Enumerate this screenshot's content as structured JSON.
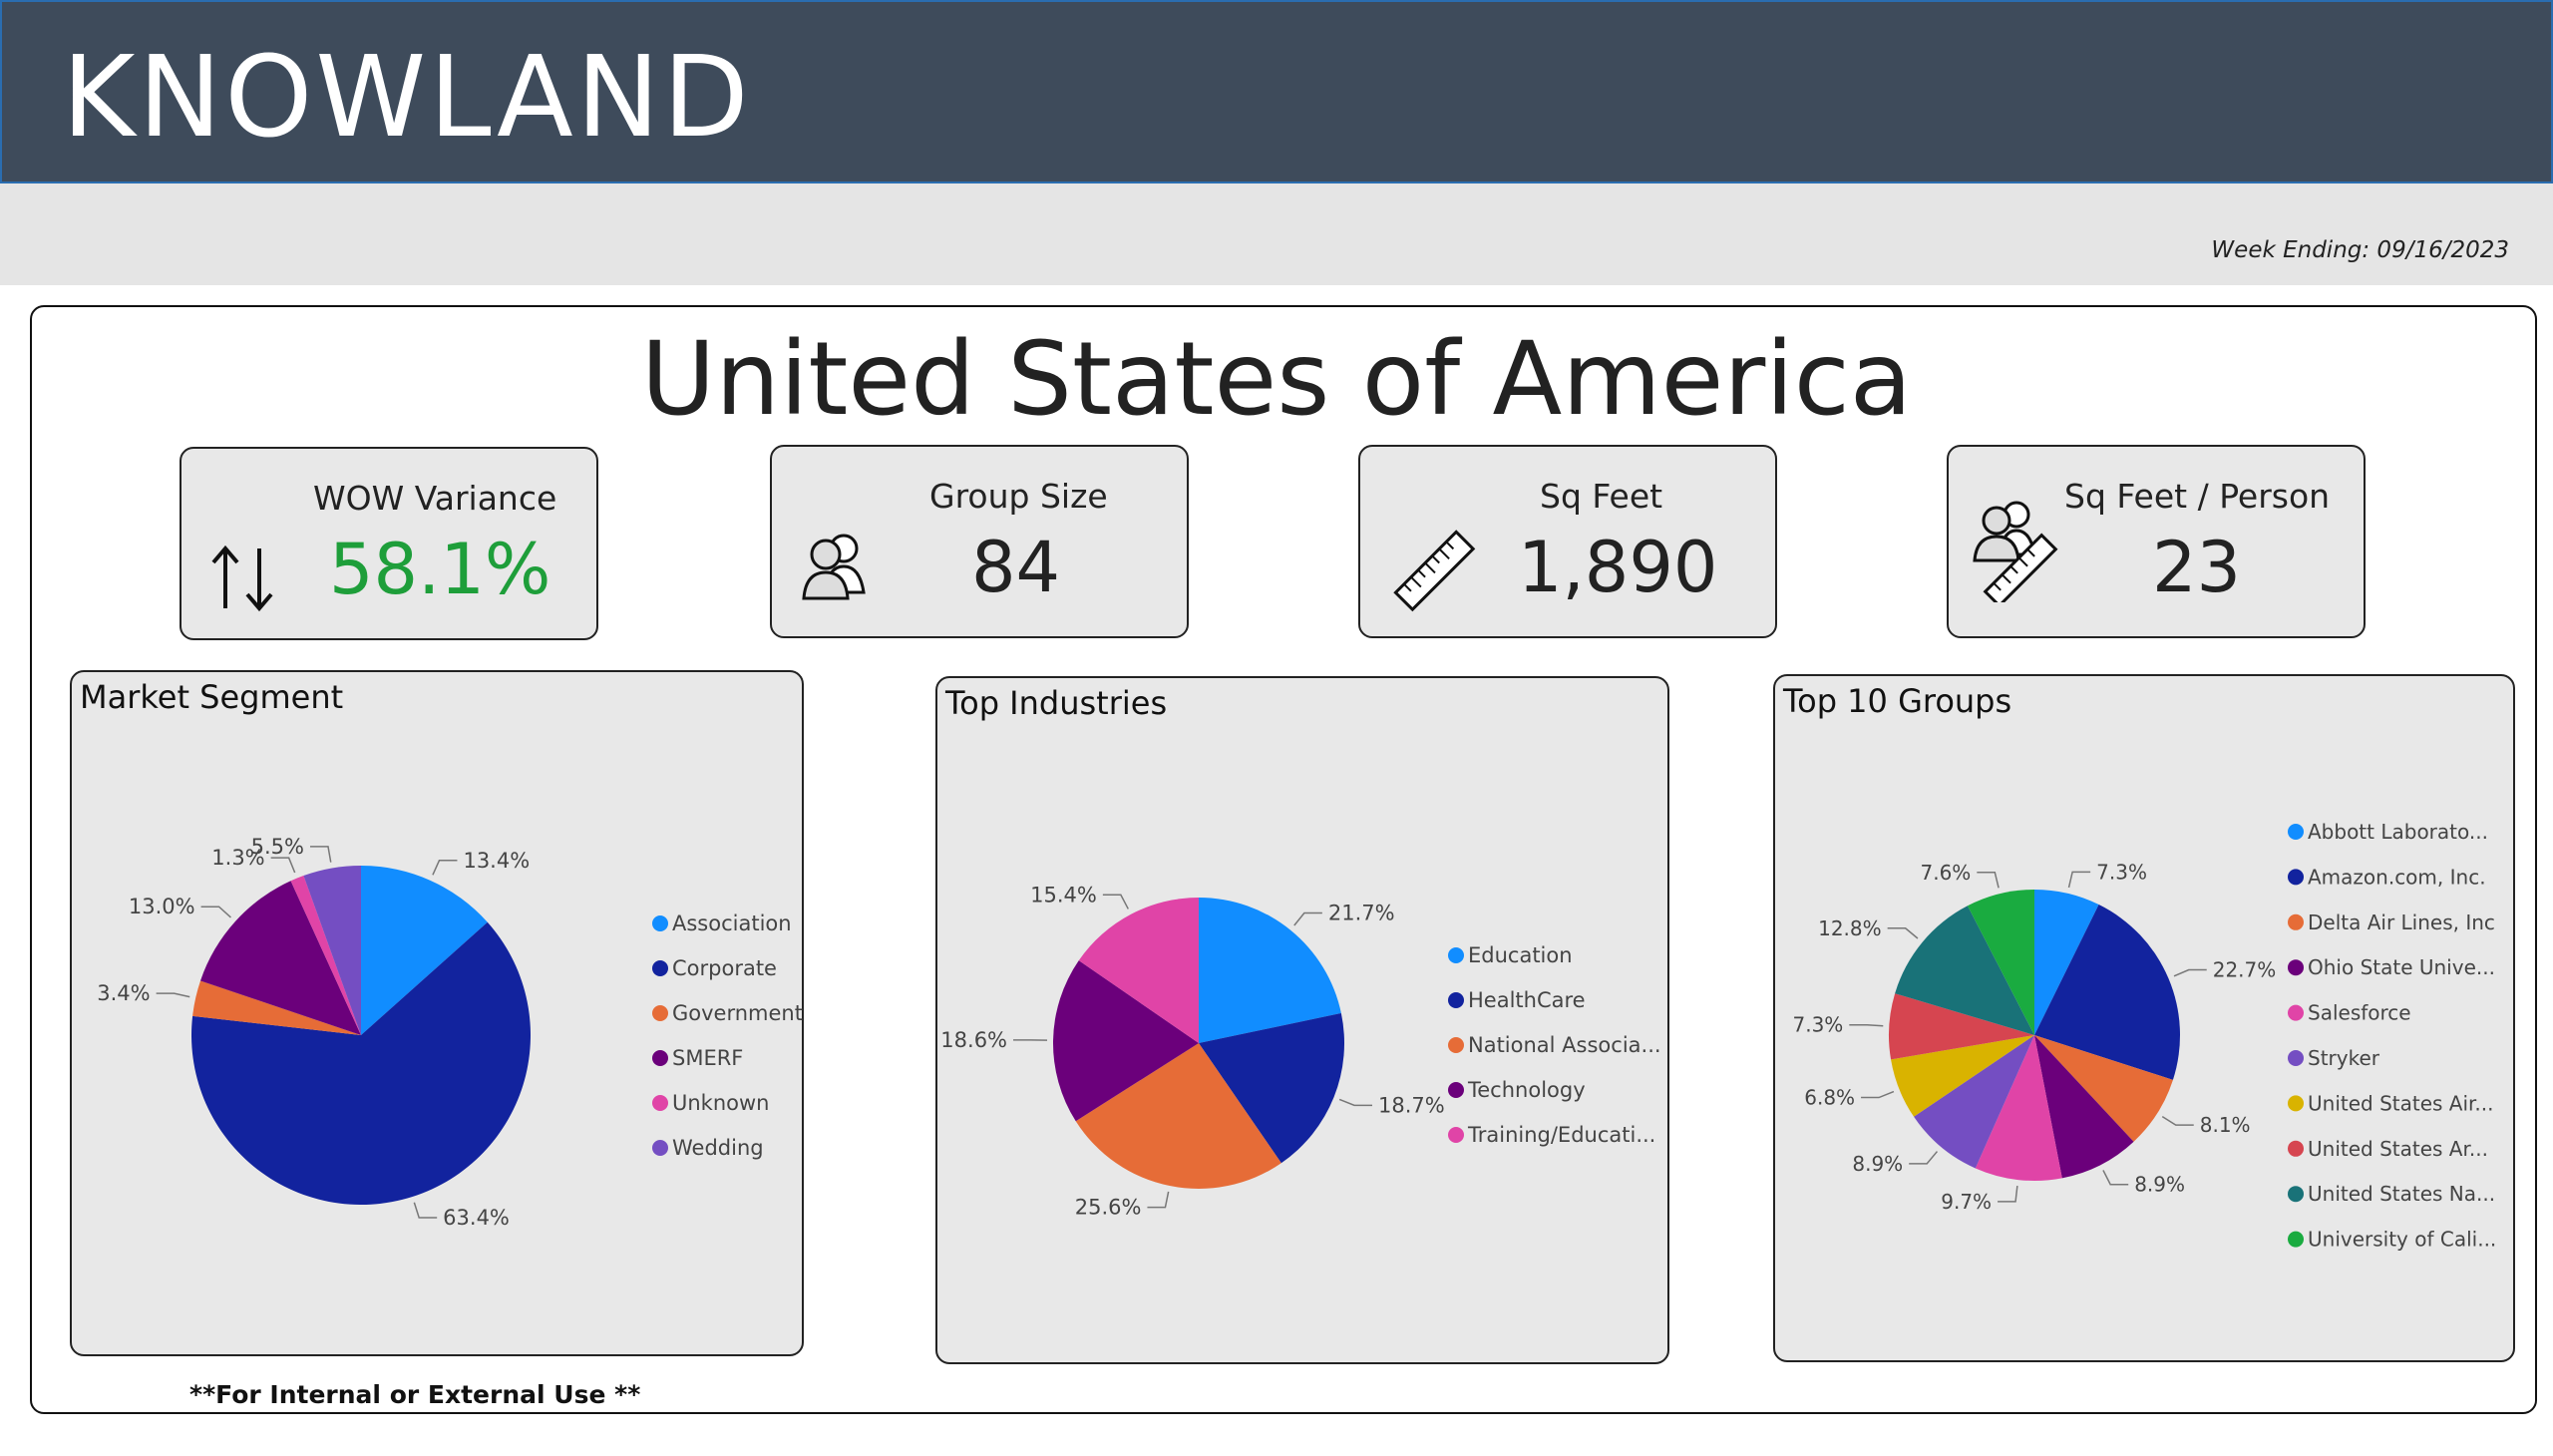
{
  "header": {
    "brand": "KNOWLAND",
    "week_ending": "Week Ending: 09/16/2023"
  },
  "region": "United States of America",
  "kpis": [
    {
      "label": "WOW Variance",
      "value": "58.1%",
      "icon": "up-down-arrows-icon",
      "value_color": "#1e9e3a"
    },
    {
      "label": "Group Size",
      "value": "84",
      "icon": "people-icon",
      "value_color": "#222222"
    },
    {
      "label": "Sq Feet",
      "value": "1,890",
      "icon": "ruler-icon",
      "value_color": "#222222"
    },
    {
      "label": "Sq Feet / Person",
      "value": "23",
      "icon": "people-ruler-icon",
      "value_color": "#222222"
    }
  ],
  "chart_data": [
    {
      "type": "pie",
      "title": "Market Segment",
      "categories": [
        "Association",
        "Corporate",
        "Government",
        "SMERF",
        "Unknown",
        "Wedding"
      ],
      "values": [
        13.4,
        63.4,
        3.4,
        13.0,
        1.3,
        5.5
      ],
      "labels": [
        "13.4%",
        "63.4%",
        "3.4%",
        "13.0%",
        "1.3%",
        "5.5%"
      ],
      "colors": [
        "#118dff",
        "#12239e",
        "#e66c37",
        "#6b007b",
        "#e044a7",
        "#744ec2"
      ],
      "legend": "right"
    },
    {
      "type": "pie",
      "title": "Top Industries",
      "categories": [
        "Education",
        "HealthCare",
        "National Associa...",
        "Technology",
        "Training/Educati..."
      ],
      "values": [
        21.7,
        18.7,
        25.6,
        18.6,
        15.4
      ],
      "labels": [
        "21.7%",
        "18.7%",
        "25.6%",
        "18.6%",
        "15.4%"
      ],
      "colors": [
        "#118dff",
        "#12239e",
        "#e66c37",
        "#6b007b",
        "#e044a7"
      ],
      "legend": "right"
    },
    {
      "type": "pie",
      "title": "Top 10 Groups",
      "categories": [
        "Abbott Laborato...",
        "Amazon.com, Inc.",
        "Delta Air Lines, Inc",
        "Ohio State Unive...",
        "Salesforce",
        "Stryker",
        "United States Air...",
        "United States Ar...",
        "United States Na...",
        "University of Cali..."
      ],
      "values": [
        7.3,
        22.7,
        8.1,
        8.9,
        9.7,
        8.9,
        6.8,
        7.3,
        12.8,
        7.6
      ],
      "labels": [
        "7.3%",
        "22.7%",
        "8.1%",
        "8.9%",
        "9.7%",
        "8.9%",
        "6.8%",
        "7.3%",
        "12.8%",
        "7.6%"
      ],
      "colors": [
        "#118dff",
        "#12239e",
        "#e66c37",
        "#6b007b",
        "#e044a7",
        "#744ec2",
        "#d9b300",
        "#d64550",
        "#197278",
        "#1aab40"
      ],
      "legend": "right"
    }
  ],
  "footer": "**For Internal or External Use **"
}
